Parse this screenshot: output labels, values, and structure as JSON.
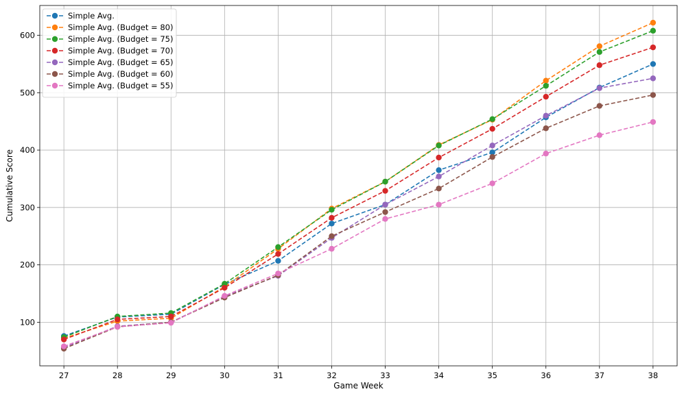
{
  "chart_data": {
    "type": "line",
    "title": "",
    "xlabel": "Game Week",
    "ylabel": "Cumulative Score",
    "x": [
      27,
      28,
      29,
      30,
      31,
      32,
      33,
      34,
      35,
      36,
      37,
      38
    ],
    "xlim": [
      26.55,
      38.45
    ],
    "ylim": [
      24,
      652
    ],
    "yticks": [
      100,
      200,
      300,
      400,
      500,
      600
    ],
    "grid": true,
    "line_style": "dashed",
    "marker": "circle",
    "legend_position": "upper-left",
    "series": [
      {
        "name": "Simple Avg.",
        "color": "#1f77b4",
        "values": [
          76,
          109,
          114,
          166,
          207,
          272,
          305,
          365,
          396,
          457,
          509,
          550
        ]
      },
      {
        "name": "Simple Avg. (Budget = 80)",
        "color": "#ff7f0e",
        "values": [
          72,
          102,
          107,
          162,
          228,
          298,
          345,
          409,
          453,
          521,
          581,
          622
        ]
      },
      {
        "name": "Simple Avg. (Budget = 75)",
        "color": "#2ca02c",
        "values": [
          74,
          110,
          116,
          167,
          231,
          296,
          345,
          408,
          454,
          512,
          571,
          608
        ]
      },
      {
        "name": "Simple Avg. (Budget = 70)",
        "color": "#d62728",
        "values": [
          70,
          105,
          110,
          160,
          219,
          282,
          329,
          387,
          437,
          493,
          548,
          579
        ]
      },
      {
        "name": "Simple Avg. (Budget = 65)",
        "color": "#9467bd",
        "values": [
          56,
          93,
          100,
          145,
          181,
          247,
          305,
          354,
          408,
          460,
          508,
          525
        ]
      },
      {
        "name": "Simple Avg. (Budget = 60)",
        "color": "#8c564b",
        "values": [
          54,
          92,
          100,
          143,
          182,
          250,
          292,
          333,
          388,
          438,
          477,
          496
        ]
      },
      {
        "name": "Simple Avg. (Budget = 55)",
        "color": "#e377c2",
        "values": [
          58,
          92,
          99,
          146,
          185,
          228,
          280,
          305,
          342,
          394,
          426,
          449
        ]
      }
    ]
  }
}
